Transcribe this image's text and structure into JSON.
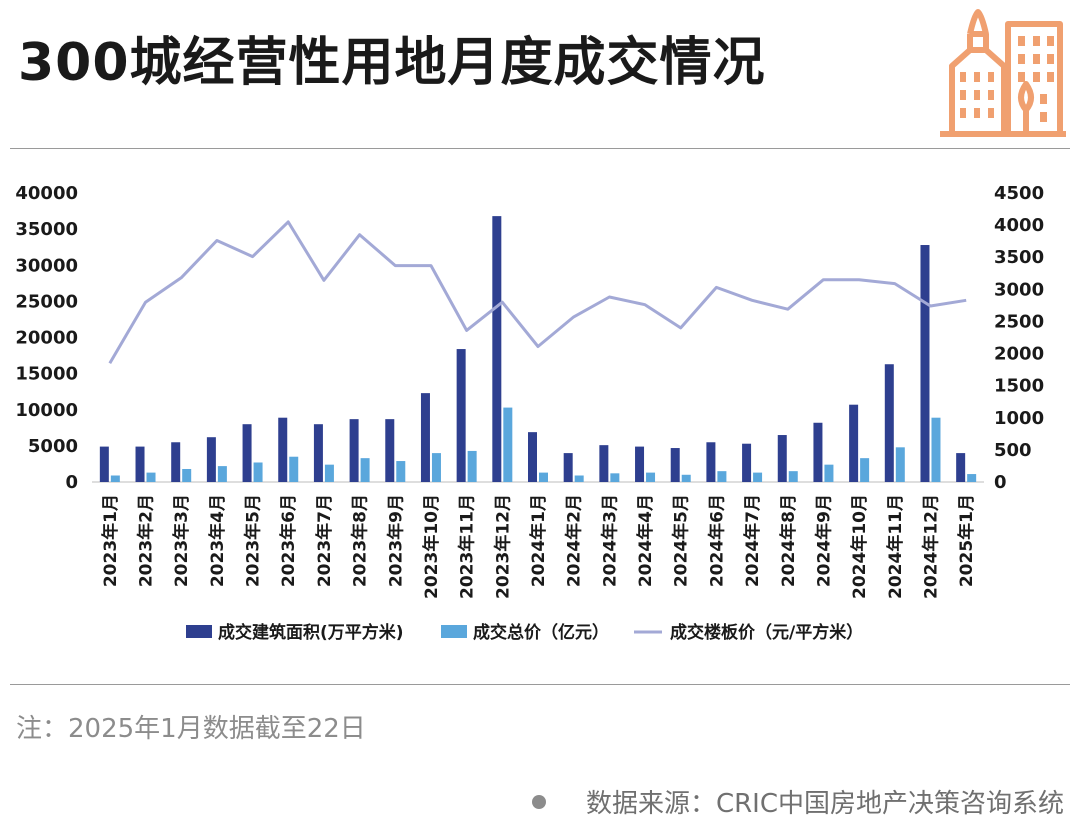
{
  "title": "300城经营性用地月度成交情况",
  "note": "注：2025年1月数据截至22日",
  "source": "数据来源：CRIC中国房地产决策咨询系统",
  "colors": {
    "area_bar": "#2e3f8f",
    "value_bar": "#5aa7dc",
    "price_line": "#a3a9d6",
    "logo": "#f0a070"
  },
  "icons": {
    "logo": "city-buildings-icon",
    "bullet": "dot-icon"
  },
  "chart_data": {
    "type": "bar",
    "categories": [
      "2023年1月",
      "2023年2月",
      "2023年3月",
      "2023年4月",
      "2023年5月",
      "2023年6月",
      "2023年7月",
      "2023年8月",
      "2023年9月",
      "2023年10月",
      "2023年11月",
      "2023年12月",
      "2024年1月",
      "2024年2月",
      "2024年3月",
      "2024年4月",
      "2024年5月",
      "2024年6月",
      "2024年7月",
      "2024年8月",
      "2024年9月",
      "2024年10月",
      "2024年11月",
      "2024年12月",
      "2025年1月"
    ],
    "series": [
      {
        "name": "成交建筑面积(万平方米)",
        "type": "bar",
        "axis": "left",
        "values": [
          4900,
          4900,
          5500,
          6200,
          8000,
          8900,
          8000,
          8700,
          8700,
          12300,
          18400,
          36800,
          6900,
          4000,
          5100,
          4900,
          4700,
          5500,
          5300,
          6500,
          8200,
          10700,
          16300,
          32800,
          4000
        ]
      },
      {
        "name": "成交总价（亿元）",
        "type": "bar",
        "axis": "left",
        "values": [
          900,
          1300,
          1800,
          2200,
          2700,
          3500,
          2400,
          3300,
          2900,
          4000,
          4300,
          10300,
          1300,
          900,
          1200,
          1300,
          1000,
          1500,
          1300,
          1500,
          2400,
          3300,
          4800,
          8900,
          1100
        ]
      },
      {
        "name": "成交楼板价（元/平方米）",
        "type": "line",
        "axis": "right",
        "values": [
          1850,
          2800,
          3180,
          3760,
          3510,
          4050,
          3140,
          3850,
          3370,
          3370,
          2360,
          2800,
          2110,
          2570,
          2880,
          2760,
          2400,
          3030,
          2830,
          2690,
          3150,
          3150,
          3090,
          2740,
          2830
        ]
      }
    ],
    "y_left": {
      "ylim": [
        0,
        40000
      ],
      "ticks": [
        "0",
        "5000",
        "10000",
        "15000",
        "20000",
        "25000",
        "30000",
        "35000",
        "40000"
      ]
    },
    "y_right": {
      "ylim": [
        0,
        4500
      ],
      "ticks": [
        "0",
        "500",
        "1000",
        "1500",
        "2000",
        "2500",
        "3000",
        "3500",
        "4000",
        "4500"
      ]
    },
    "legend_position": "bottom",
    "grid": false
  }
}
